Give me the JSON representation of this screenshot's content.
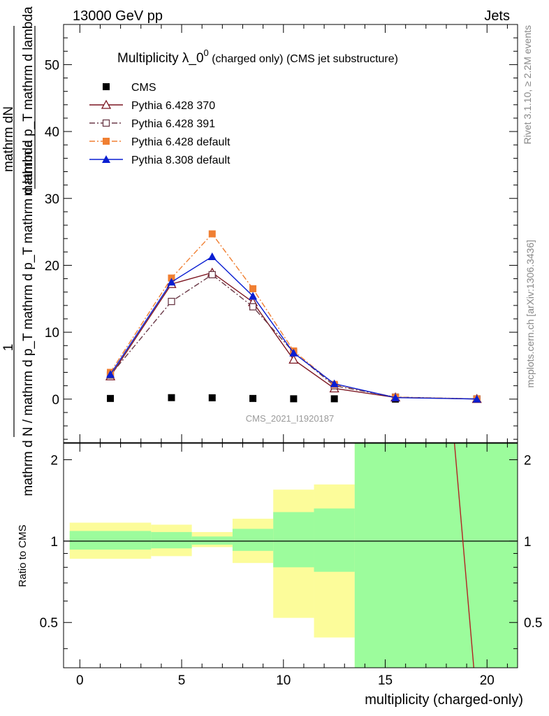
{
  "header": {
    "left": "13000 GeV pp",
    "right": "Jets"
  },
  "side_labels": {
    "rivet": "Rivet 3.1.10, ≥ 2.2M events",
    "mcplots": "mcplots.cern.ch [arXiv:1306.3436]"
  },
  "watermark": "CMS_2021_I1920187",
  "chart_data": [
    {
      "type": "line",
      "title_main": "Multiplicity λ_0",
      "title_sup": "0",
      "title_small": " (charged only) (CMS jet substructure)",
      "ylabel_top": "1",
      "ylabel_num": "mathrm dN",
      "ylabel_num_sub": "mathrm d p_T mathrm d lambda",
      "ylabel_den": "mathrm d N / mathrm d p_T mathrm d p_T mathrm d lambda",
      "xlim": [
        -0.8,
        21.5
      ],
      "ylim": [
        -6.5,
        56
      ],
      "xticks": [
        0,
        5,
        10,
        15,
        20
      ],
      "yticks": [
        0,
        10,
        20,
        30,
        40,
        50
      ],
      "x": [
        1.5,
        4.5,
        6.5,
        8.5,
        10.5,
        12.5,
        15.5,
        19.5
      ],
      "series": [
        {
          "name": "CMS",
          "color": "#000000",
          "marker": "square-filled",
          "line": "none",
          "values": [
            0.1,
            0.22,
            0.2,
            0.1,
            0.05,
            0.05,
            0.005,
            0.0001
          ]
        },
        {
          "name": "Pythia 6.428 370",
          "color": "#7b1520",
          "marker": "triangle-open",
          "line": "solid",
          "values": [
            3.4,
            17.2,
            18.9,
            14.5,
            5.9,
            1.6,
            0.25,
            0.02
          ]
        },
        {
          "name": "Pythia 6.428 391",
          "color": "#6b3a48",
          "marker": "square-open",
          "line": "dashdot",
          "values": [
            3.6,
            14.6,
            18.6,
            13.8,
            7.0,
            2.0,
            0.3,
            0.03
          ]
        },
        {
          "name": "Pythia 6.428 default",
          "color": "#f07f32",
          "marker": "square-filled",
          "line": "dashdot",
          "values": [
            4.0,
            18.1,
            24.7,
            16.5,
            7.2,
            2.2,
            0.28,
            0.04
          ]
        },
        {
          "name": "Pythia 8.308 default",
          "color": "#0a1ed2",
          "marker": "triangle-filled",
          "line": "solid",
          "values": [
            3.7,
            17.5,
            21.3,
            15.4,
            6.9,
            2.3,
            0.22,
            0.02
          ]
        }
      ]
    },
    {
      "type": "area",
      "ylabel": "Ratio to CMS",
      "xlabel": "multiplicity (charged-only)",
      "xlim": [
        -0.8,
        21.5
      ],
      "ylim": [
        0.34,
        2.3
      ],
      "log_y": true,
      "yticks": [
        0.5,
        1,
        2
      ],
      "xticks": [
        0,
        5,
        10,
        15,
        20
      ],
      "bins": [
        {
          "lo": -0.5,
          "hi": 3.5,
          "stat": [
            0.93,
            1.09
          ],
          "total": [
            0.86,
            1.17
          ]
        },
        {
          "lo": 3.5,
          "hi": 5.5,
          "stat": [
            0.94,
            1.08
          ],
          "total": [
            0.88,
            1.15
          ]
        },
        {
          "lo": 5.5,
          "hi": 7.5,
          "stat": [
            0.97,
            1.04
          ],
          "total": [
            0.95,
            1.08
          ]
        },
        {
          "lo": 7.5,
          "hi": 9.5,
          "stat": [
            0.92,
            1.11
          ],
          "total": [
            0.83,
            1.21
          ]
        },
        {
          "lo": 9.5,
          "hi": 11.5,
          "stat": [
            0.8,
            1.28
          ],
          "total": [
            0.52,
            1.55
          ]
        },
        {
          "lo": 11.5,
          "hi": 13.5,
          "stat": [
            0.77,
            1.32
          ],
          "total": [
            0.44,
            1.62
          ]
        },
        {
          "lo": 13.5,
          "hi": 21.5,
          "stat": [
            0.3,
            2.5
          ],
          "total": [
            0.3,
            2.5
          ]
        }
      ],
      "reference": 1,
      "ratio_line": {
        "color": "#b22222",
        "x": [
          18.4,
          19.35
        ],
        "y": [
          2.3,
          0.34
        ]
      }
    }
  ]
}
